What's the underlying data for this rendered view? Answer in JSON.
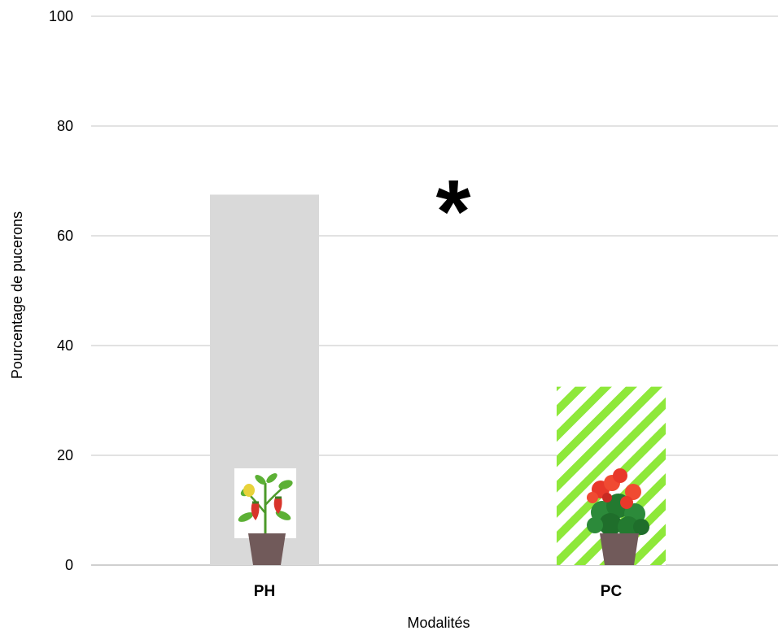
{
  "chart_data": {
    "type": "bar",
    "title": "",
    "xlabel": "Modalités",
    "ylabel": "Pourcentage de pucerons",
    "categories": [
      "PH",
      "PC"
    ],
    "values": [
      67.5,
      32.5
    ],
    "ylim": [
      0,
      100
    ],
    "yticks": [
      "0",
      "20",
      "40",
      "60",
      "80",
      "100"
    ],
    "grid": true,
    "legend": "none",
    "bar_styles": [
      {
        "fill": "#d9d9d9",
        "pattern": "solid",
        "icon": "pepper-plant-icon"
      },
      {
        "fill": "#8ee83a",
        "pattern": "diagonal-stripes",
        "icon": "geranium-plant-icon"
      }
    ],
    "annotation": "*"
  }
}
